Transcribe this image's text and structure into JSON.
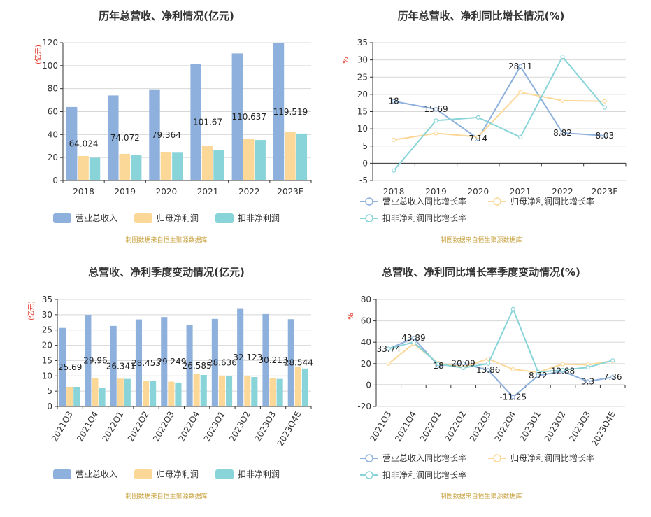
{
  "colors": {
    "revenue": "#8eb0dc",
    "parent_profit": "#fcd898",
    "deducted_profit": "#88d4d8",
    "unit": "#e0301e",
    "source": "#c8a03c"
  },
  "chart_data": [
    {
      "id": "annual_amounts",
      "type": "bar",
      "title": "历年总营收、净利情况(亿元)",
      "unit_label": "(亿元)",
      "categories": [
        "2018",
        "2019",
        "2020",
        "2021",
        "2022",
        "2023E"
      ],
      "series": [
        {
          "name": "营业总收入",
          "values": [
            64.024,
            74.072,
            79.364,
            101.67,
            110.637,
            119.519
          ],
          "labeled": true
        },
        {
          "name": "归母净利润",
          "values": [
            21.3,
            23.2,
            25.0,
            30.3,
            36.0,
            42.3
          ],
          "labeled": false
        },
        {
          "name": "扣非净利润",
          "values": [
            19.8,
            22.0,
            24.8,
            26.6,
            35.3,
            40.9
          ],
          "labeled": false
        }
      ],
      "data_labels": [
        "64.024",
        "74.072",
        "79.364",
        "101.67",
        "110.637",
        "119.519"
      ],
      "ylim": [
        0,
        120
      ],
      "yticks": [
        0,
        20,
        40,
        60,
        80,
        100,
        120
      ],
      "source": "制图数据来自恒生聚源数据库"
    },
    {
      "id": "annual_growth",
      "type": "line",
      "title": "历年总营收、净利同比增长情况(%)",
      "unit_label": "%",
      "categories": [
        "2018",
        "2019",
        "2020",
        "2021",
        "2022",
        "2023E"
      ],
      "series": [
        {
          "name": "营业总收入同比增长率",
          "values": [
            18,
            15.69,
            7.14,
            28.11,
            8.82,
            8.03
          ],
          "labeled": true
        },
        {
          "name": "归母净利润同比增长率",
          "values": [
            6.8,
            8.7,
            7.7,
            20.6,
            18.2,
            18.0
          ],
          "labeled": false
        },
        {
          "name": "扣非净利润同比增长率",
          "values": [
            -2.1,
            12.4,
            13.3,
            7.6,
            30.9,
            16.2
          ],
          "labeled": false
        }
      ],
      "data_labels": [
        "18",
        "15.69",
        "7.14",
        "28.11",
        "8.82",
        "8.03"
      ],
      "ylim": [
        -5,
        35
      ],
      "yticks": [
        -5,
        0,
        5,
        10,
        15,
        20,
        25,
        30,
        35
      ],
      "source": "制图数据来自恒生聚源数据库"
    },
    {
      "id": "quarterly_amounts",
      "type": "bar",
      "title": "总营收、净利季度变动情况(亿元)",
      "unit_label": "(亿元)",
      "categories": [
        "2021Q3",
        "2021Q4",
        "2022Q1",
        "2022Q2",
        "2022Q3",
        "2022Q4",
        "2023Q1",
        "2023Q2",
        "2023Q3",
        "2023Q4E"
      ],
      "series": [
        {
          "name": "营业总收入",
          "values": [
            25.69,
            29.96,
            26.341,
            28.453,
            29.249,
            26.585,
            28.636,
            32.123,
            30.213,
            28.544
          ],
          "labeled": true
        },
        {
          "name": "归母净利润",
          "values": [
            6.4,
            9.2,
            9.1,
            8.4,
            8.1,
            10.6,
            10.1,
            10.1,
            9.2,
            12.9
          ],
          "labeled": false
        },
        {
          "name": "扣非净利润",
          "values": [
            6.4,
            6.0,
            9.0,
            8.3,
            7.8,
            10.3,
            9.9,
            9.6,
            9.0,
            12.4
          ],
          "labeled": false
        }
      ],
      "data_labels": [
        "25.69",
        "29.96",
        "26.341",
        "28.453",
        "29.249",
        "26.585",
        "28.636",
        "32.123",
        "30.213",
        "28.544"
      ],
      "ylim": [
        0,
        35
      ],
      "yticks": [
        0,
        5,
        10,
        15,
        20,
        25,
        30,
        35
      ],
      "source": "制图数据来自恒生聚源数据库"
    },
    {
      "id": "quarterly_growth",
      "type": "line",
      "title": "总营收、净利同比增长率季度变动情况(%)",
      "unit_label": "%",
      "categories": [
        "2021Q3",
        "2021Q4",
        "2022Q1",
        "2022Q2",
        "2022Q3",
        "2022Q4",
        "2023Q1",
        "2023Q2",
        "2023Q3",
        "2023Q4E"
      ],
      "series": [
        {
          "name": "营业总收入同比增长率",
          "values": [
            33.74,
            43.89,
            18,
            20.09,
            13.86,
            -11.25,
            8.72,
            12.88,
            3.3,
            7.36
          ],
          "labeled": true
        },
        {
          "name": "归母净利润同比增长率",
          "values": [
            20.0,
            38.5,
            20.4,
            16.8,
            24.5,
            14.6,
            12.0,
            19.5,
            19.0,
            22.5
          ],
          "labeled": false
        },
        {
          "name": "扣非净利润同比增长率",
          "values": [
            34.0,
            40.0,
            19.6,
            16.0,
            20.0,
            71.0,
            12.2,
            14.0,
            16.5,
            23.0
          ],
          "labeled": false
        }
      ],
      "data_labels": [
        "33.74",
        "43.89",
        "18",
        "20.09",
        "13.86",
        "-11.25",
        "8.72",
        "12.88",
        "3.3",
        "7.36"
      ],
      "ylim": [
        -20,
        80
      ],
      "yticks": [
        -20,
        0,
        20,
        40,
        60,
        80
      ],
      "source": "制图数据来自恒生聚源数据库"
    }
  ]
}
